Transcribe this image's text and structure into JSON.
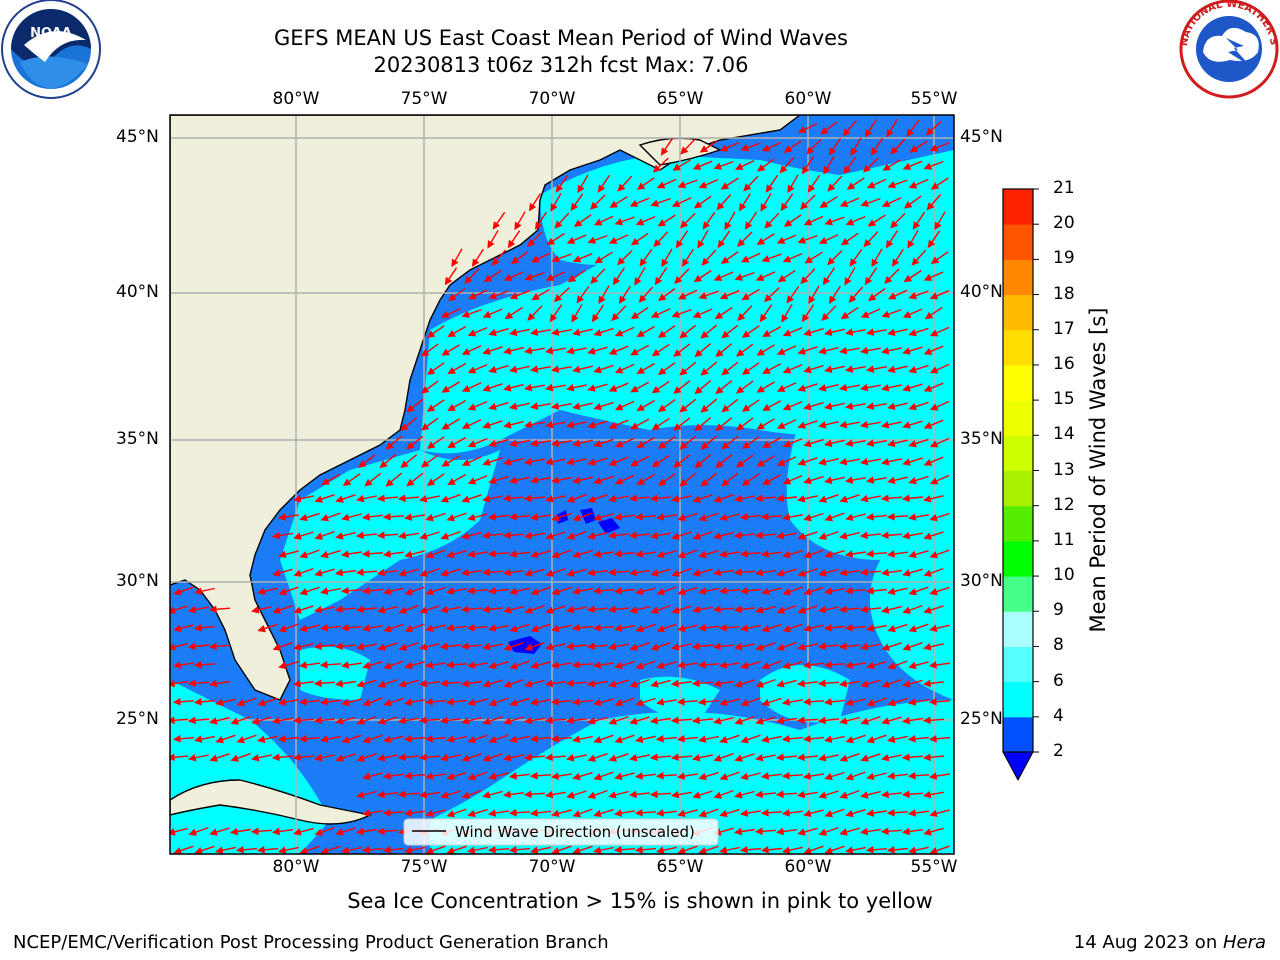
{
  "title": {
    "line1": "GEFS MEAN US East Coast Mean Period of Wind Waves",
    "line2": "20230813 t06z 312h fcst   Max: 7.06"
  },
  "logos": {
    "left": "NOAA",
    "right": "NATIONAL WEATHER SERVICE"
  },
  "map": {
    "lon_labels": [
      "80°W",
      "75°W",
      "70°W",
      "65°W",
      "60°W",
      "55°W"
    ],
    "lat_labels": [
      "45°N",
      "40°N",
      "35°N",
      "30°N",
      "25°N"
    ],
    "colors": {
      "land": "#efefdb",
      "ocean_low": "#1a7cf7",
      "ocean_mid": "#00ffff",
      "arrow": "#ff0000",
      "grid": "#b0b0b0"
    },
    "legend_label": "Wind Wave Direction (unscaled)"
  },
  "colorbar": {
    "label": "Mean Period of Wind Waves [s]",
    "ticks": [
      "2",
      "4",
      "6",
      "8",
      "9",
      "10",
      "11",
      "12",
      "13",
      "14",
      "15",
      "16",
      "17",
      "18",
      "19",
      "20",
      "21"
    ],
    "colors": [
      "#0050ff",
      "#00ffff",
      "#55ffff",
      "#aaffff",
      "#44ff88",
      "#00ff00",
      "#55ee00",
      "#aaee00",
      "#ccff00",
      "#eeff00",
      "#ffff00",
      "#ffdd00",
      "#ffbb00",
      "#ff8800",
      "#ff5500",
      "#ff2200",
      "#ff0000"
    ],
    "under_color": "#0000ff"
  },
  "caption": "Sea Ice Concentration > 15% is shown in pink to yellow",
  "footer": {
    "left": "NCEP/EMC/Verification Post Processing Product Generation Branch",
    "right_date": "14 Aug 2023 on ",
    "right_host": "Hera"
  }
}
